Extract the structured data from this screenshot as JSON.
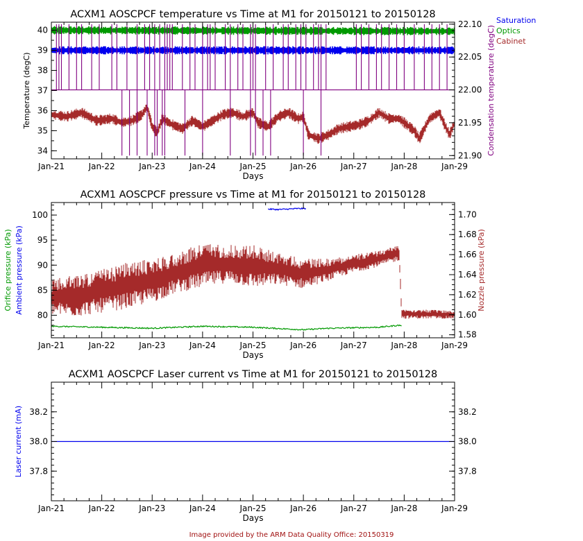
{
  "legend": [
    {
      "label": "Saturation",
      "color": "#0000ee"
    },
    {
      "label": "Optics",
      "color": "#009900"
    },
    {
      "label": "Cabinet",
      "color": "#a52a2a"
    }
  ],
  "footer": "Image provided by the ARM Data Quality Office: 20150319",
  "chart_data": [
    {
      "type": "line",
      "title": "ACXM1 AOSCPCF temperature vs Time at M1 for 20150121 to 20150128",
      "xlabel": "Days",
      "x_ticks": [
        "Jan-21",
        "Jan-22",
        "Jan-23",
        "Jan-24",
        "Jan-25",
        "Jan-26",
        "Jan-27",
        "Jan-28",
        "Jan-29"
      ],
      "xlim": [
        0,
        8
      ],
      "ylabel_left": "Temperature (degC)",
      "ylabel_left_color": "#000000",
      "ylim_left": [
        33.6,
        40.4
      ],
      "yticks_left": [
        "34",
        "35",
        "36",
        "37",
        "38",
        "39",
        "40"
      ],
      "ylabel_right": "Condensation temperature (degC)",
      "ylabel_right_color": "#800080",
      "ylim_right": [
        21.895,
        22.103
      ],
      "yticks_right": [
        "21.90",
        "21.95",
        "22.00",
        "22.05",
        "22.10"
      ],
      "series": [
        {
          "name": "Optics",
          "color": "#009900",
          "axis": "left",
          "kind": "band",
          "values": [
            {
              "x": 0,
              "y": 40.0
            },
            {
              "x": 8,
              "y": 39.95
            }
          ]
        },
        {
          "name": "Saturation",
          "color": "#0000ee",
          "axis": "left",
          "kind": "band",
          "values": [
            {
              "x": 0,
              "y": 39.0
            },
            {
              "x": 8,
              "y": 39.0
            }
          ]
        },
        {
          "name": "Cabinet",
          "color": "#a52a2a",
          "axis": "left",
          "kind": "noisy",
          "values": [
            {
              "x": 0,
              "y": 35.8
            },
            {
              "x": 0.3,
              "y": 35.7
            },
            {
              "x": 0.6,
              "y": 35.9
            },
            {
              "x": 0.9,
              "y": 35.5
            },
            {
              "x": 1.2,
              "y": 35.6
            },
            {
              "x": 1.4,
              "y": 35.4
            },
            {
              "x": 1.6,
              "y": 35.5
            },
            {
              "x": 1.8,
              "y": 35.8
            },
            {
              "x": 1.9,
              "y": 36.2
            },
            {
              "x": 2.0,
              "y": 35.2
            },
            {
              "x": 2.1,
              "y": 34.9
            },
            {
              "x": 2.2,
              "y": 35.6
            },
            {
              "x": 2.4,
              "y": 35.3
            },
            {
              "x": 2.6,
              "y": 35.1
            },
            {
              "x": 2.8,
              "y": 35.5
            },
            {
              "x": 3.0,
              "y": 35.2
            },
            {
              "x": 3.2,
              "y": 35.5
            },
            {
              "x": 3.4,
              "y": 35.8
            },
            {
              "x": 3.6,
              "y": 35.9
            },
            {
              "x": 3.8,
              "y": 35.7
            },
            {
              "x": 4.0,
              "y": 35.9
            },
            {
              "x": 4.1,
              "y": 35.4
            },
            {
              "x": 4.3,
              "y": 35.2
            },
            {
              "x": 4.5,
              "y": 35.7
            },
            {
              "x": 4.7,
              "y": 35.9
            },
            {
              "x": 4.9,
              "y": 35.6
            },
            {
              "x": 5.0,
              "y": 35.7
            },
            {
              "x": 5.1,
              "y": 34.8
            },
            {
              "x": 5.3,
              "y": 34.6
            },
            {
              "x": 5.5,
              "y": 34.8
            },
            {
              "x": 5.7,
              "y": 35.1
            },
            {
              "x": 5.9,
              "y": 35.2
            },
            {
              "x": 6.1,
              "y": 35.3
            },
            {
              "x": 6.3,
              "y": 35.5
            },
            {
              "x": 6.5,
              "y": 35.9
            },
            {
              "x": 6.7,
              "y": 35.6
            },
            {
              "x": 6.9,
              "y": 35.6
            },
            {
              "x": 7.0,
              "y": 35.4
            },
            {
              "x": 7.2,
              "y": 35.0
            },
            {
              "x": 7.3,
              "y": 34.6
            },
            {
              "x": 7.5,
              "y": 35.6
            },
            {
              "x": 7.7,
              "y": 35.9
            },
            {
              "x": 7.8,
              "y": 35.3
            },
            {
              "x": 7.9,
              "y": 34.8
            },
            {
              "x": 8.0,
              "y": 35.4
            }
          ]
        },
        {
          "name": "Condensation",
          "color": "#800080",
          "axis": "right",
          "kind": "step",
          "baseline": 22.0,
          "high": 22.1,
          "low": 21.9,
          "spikes_up": [
            0.1,
            0.15,
            0.2,
            0.35,
            0.5,
            0.6,
            0.8,
            0.95,
            1.2,
            1.3,
            1.5,
            1.7,
            1.85,
            1.95,
            2.05,
            2.15,
            2.25,
            2.3,
            2.35,
            2.4,
            2.6,
            2.75,
            2.85,
            3.0,
            3.1,
            3.15,
            3.25,
            3.45,
            3.55,
            3.7,
            3.8,
            3.95,
            4.0,
            4.05,
            4.25,
            4.4,
            4.6,
            4.7,
            4.85,
            4.95,
            5.05,
            5.2,
            5.3,
            5.35,
            5.45,
            6.05,
            6.15,
            6.3,
            6.45,
            6.55,
            6.7,
            6.85,
            7.0,
            7.2,
            7.4,
            7.55,
            7.7,
            7.85
          ],
          "spikes_down": [
            1.4,
            1.55,
            1.7,
            1.9,
            2.05,
            2.1,
            2.2,
            2.25,
            2.65,
            3.0,
            3.55,
            3.95,
            4.05,
            4.2,
            4.35,
            5.0,
            5.35
          ]
        }
      ]
    },
    {
      "type": "line",
      "title": "ACXM1 AOSCPCF pressure vs Time at M1 for 20150121 to 20150128",
      "xlabel": "Days",
      "x_ticks": [
        "Jan-21",
        "Jan-22",
        "Jan-23",
        "Jan-24",
        "Jan-25",
        "Jan-26",
        "Jan-27",
        "Jan-28",
        "Jan-29"
      ],
      "xlim": [
        0,
        8
      ],
      "ylabel_left_lines": [
        {
          "text": "Orifice pressure (kPa)",
          "color": "#009900"
        },
        {
          "text": "Ambient pressure (kPa)",
          "color": "#0000ee"
        }
      ],
      "ylim_left": [
        75.5,
        102.5
      ],
      "yticks_left": [
        "80",
        "85",
        "90",
        "95",
        "100"
      ],
      "ylabel_right": "Nozzle pressure (kPa)",
      "ylabel_right_color": "#a52a2a",
      "ylim_right": [
        1.577,
        1.712
      ],
      "yticks_right": [
        "1.58",
        "1.60",
        "1.62",
        "1.64",
        "1.66",
        "1.68",
        "1.70"
      ],
      "series": [
        {
          "name": "Ambient",
          "color": "#0000ee",
          "axis": "left",
          "kind": "line",
          "values": [
            {
              "x": 4.3,
              "y": 101.2
            },
            {
              "x": 4.5,
              "y": 101.1
            },
            {
              "x": 4.7,
              "y": 101.2
            },
            {
              "x": 4.9,
              "y": 101.3
            },
            {
              "x": 5.05,
              "y": 101.3
            }
          ]
        },
        {
          "name": "Orifice",
          "color": "#009900",
          "axis": "left",
          "kind": "line",
          "values": [
            {
              "x": 0,
              "y": 77.8
            },
            {
              "x": 1,
              "y": 77.6
            },
            {
              "x": 2,
              "y": 77.4
            },
            {
              "x": 3,
              "y": 77.8
            },
            {
              "x": 4,
              "y": 77.6
            },
            {
              "x": 5,
              "y": 77.1
            },
            {
              "x": 5.5,
              "y": 77.4
            },
            {
              "x": 6.5,
              "y": 77.6
            },
            {
              "x": 6.9,
              "y": 78.0
            },
            {
              "x": 6.95,
              "y": 77.9
            }
          ]
        },
        {
          "name": "Nozzle",
          "color": "#a52a2a",
          "axis": "right",
          "kind": "envelope",
          "values": [
            {
              "x": 0,
              "lo": 1.6,
              "hi": 1.635
            },
            {
              "x": 0.5,
              "lo": 1.598,
              "hi": 1.64
            },
            {
              "x": 1.0,
              "lo": 1.602,
              "hi": 1.645
            },
            {
              "x": 1.5,
              "lo": 1.606,
              "hi": 1.652
            },
            {
              "x": 2.0,
              "lo": 1.612,
              "hi": 1.656
            },
            {
              "x": 2.5,
              "lo": 1.622,
              "hi": 1.662
            },
            {
              "x": 3.0,
              "lo": 1.627,
              "hi": 1.672
            },
            {
              "x": 3.5,
              "lo": 1.632,
              "hi": 1.67
            },
            {
              "x": 4.0,
              "lo": 1.627,
              "hi": 1.67
            },
            {
              "x": 4.5,
              "lo": 1.63,
              "hi": 1.662
            },
            {
              "x": 5.0,
              "lo": 1.626,
              "hi": 1.656
            },
            {
              "x": 5.5,
              "lo": 1.634,
              "hi": 1.656
            },
            {
              "x": 6.0,
              "lo": 1.642,
              "hi": 1.66
            },
            {
              "x": 6.5,
              "lo": 1.648,
              "hi": 1.664
            },
            {
              "x": 6.9,
              "lo": 1.654,
              "hi": 1.67
            },
            {
              "x": 6.95,
              "lo": 1.596,
              "hi": 1.606
            },
            {
              "x": 7.5,
              "lo": 1.596,
              "hi": 1.605
            },
            {
              "x": 8.0,
              "lo": 1.596,
              "hi": 1.604
            }
          ]
        }
      ]
    },
    {
      "type": "line",
      "title": "ACXM1 AOSCPCF Laser current vs Time at M1 for 20150121 to 20150128",
      "xlabel": "Days",
      "x_ticks": [
        "Jan-21",
        "Jan-22",
        "Jan-23",
        "Jan-24",
        "Jan-25",
        "Jan-26",
        "Jan-27",
        "Jan-28",
        "Jan-29"
      ],
      "xlim": [
        0,
        8
      ],
      "ylabel_left": "Laser current (mA)",
      "ylabel_left_color": "#0000ee",
      "ylim_left": [
        37.6,
        38.4
      ],
      "yticks_left": [
        "37.8",
        "38.0",
        "38.2"
      ],
      "yticks_right": [
        "37.8",
        "38.0",
        "38.2"
      ],
      "series": [
        {
          "name": "Laser current",
          "color": "#0000ee",
          "axis": "left",
          "kind": "line",
          "values": [
            {
              "x": 0,
              "y": 38.0
            },
            {
              "x": 8,
              "y": 38.0
            }
          ]
        }
      ]
    }
  ]
}
